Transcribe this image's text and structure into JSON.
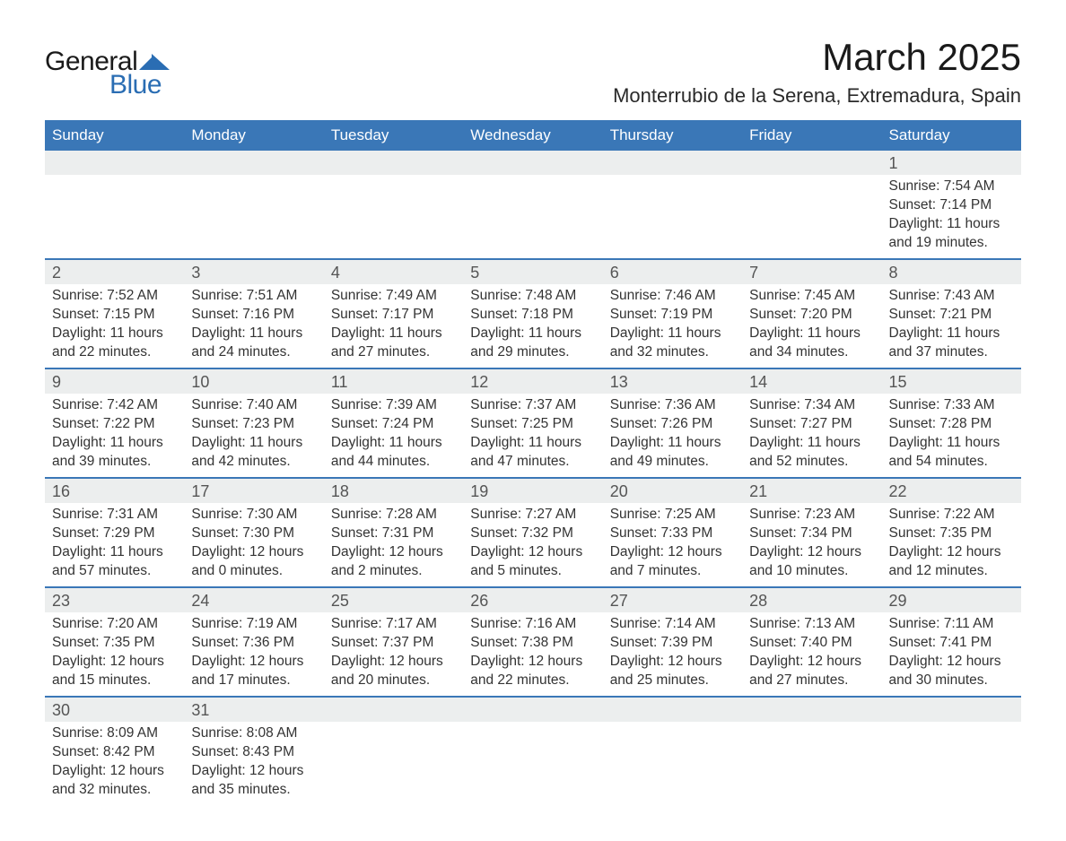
{
  "brand": {
    "name_a": "General",
    "name_b": "Blue"
  },
  "title": "March 2025",
  "location": "Monterrubio de la Serena, Extremadura, Spain",
  "colors": {
    "header_bg": "#3a77b7",
    "header_fg": "#ffffff",
    "row_stripe": "#eceeee",
    "border": "#3a77b7",
    "text": "#333333",
    "brand_blue": "#2a6db3"
  },
  "typography": {
    "title_fontsize": 42,
    "location_fontsize": 22,
    "th_fontsize": 17,
    "cell_fontsize": 15.5,
    "daynum_fontsize": 18
  },
  "days_of_week": [
    "Sunday",
    "Monday",
    "Tuesday",
    "Wednesday",
    "Thursday",
    "Friday",
    "Saturday"
  ],
  "weeks": [
    [
      null,
      null,
      null,
      null,
      null,
      null,
      {
        "n": "1",
        "sunrise": "Sunrise: 7:54 AM",
        "sunset": "Sunset: 7:14 PM",
        "daylight": "Daylight: 11 hours and 19 minutes."
      }
    ],
    [
      {
        "n": "2",
        "sunrise": "Sunrise: 7:52 AM",
        "sunset": "Sunset: 7:15 PM",
        "daylight": "Daylight: 11 hours and 22 minutes."
      },
      {
        "n": "3",
        "sunrise": "Sunrise: 7:51 AM",
        "sunset": "Sunset: 7:16 PM",
        "daylight": "Daylight: 11 hours and 24 minutes."
      },
      {
        "n": "4",
        "sunrise": "Sunrise: 7:49 AM",
        "sunset": "Sunset: 7:17 PM",
        "daylight": "Daylight: 11 hours and 27 minutes."
      },
      {
        "n": "5",
        "sunrise": "Sunrise: 7:48 AM",
        "sunset": "Sunset: 7:18 PM",
        "daylight": "Daylight: 11 hours and 29 minutes."
      },
      {
        "n": "6",
        "sunrise": "Sunrise: 7:46 AM",
        "sunset": "Sunset: 7:19 PM",
        "daylight": "Daylight: 11 hours and 32 minutes."
      },
      {
        "n": "7",
        "sunrise": "Sunrise: 7:45 AM",
        "sunset": "Sunset: 7:20 PM",
        "daylight": "Daylight: 11 hours and 34 minutes."
      },
      {
        "n": "8",
        "sunrise": "Sunrise: 7:43 AM",
        "sunset": "Sunset: 7:21 PM",
        "daylight": "Daylight: 11 hours and 37 minutes."
      }
    ],
    [
      {
        "n": "9",
        "sunrise": "Sunrise: 7:42 AM",
        "sunset": "Sunset: 7:22 PM",
        "daylight": "Daylight: 11 hours and 39 minutes."
      },
      {
        "n": "10",
        "sunrise": "Sunrise: 7:40 AM",
        "sunset": "Sunset: 7:23 PM",
        "daylight": "Daylight: 11 hours and 42 minutes."
      },
      {
        "n": "11",
        "sunrise": "Sunrise: 7:39 AM",
        "sunset": "Sunset: 7:24 PM",
        "daylight": "Daylight: 11 hours and 44 minutes."
      },
      {
        "n": "12",
        "sunrise": "Sunrise: 7:37 AM",
        "sunset": "Sunset: 7:25 PM",
        "daylight": "Daylight: 11 hours and 47 minutes."
      },
      {
        "n": "13",
        "sunrise": "Sunrise: 7:36 AM",
        "sunset": "Sunset: 7:26 PM",
        "daylight": "Daylight: 11 hours and 49 minutes."
      },
      {
        "n": "14",
        "sunrise": "Sunrise: 7:34 AM",
        "sunset": "Sunset: 7:27 PM",
        "daylight": "Daylight: 11 hours and 52 minutes."
      },
      {
        "n": "15",
        "sunrise": "Sunrise: 7:33 AM",
        "sunset": "Sunset: 7:28 PM",
        "daylight": "Daylight: 11 hours and 54 minutes."
      }
    ],
    [
      {
        "n": "16",
        "sunrise": "Sunrise: 7:31 AM",
        "sunset": "Sunset: 7:29 PM",
        "daylight": "Daylight: 11 hours and 57 minutes."
      },
      {
        "n": "17",
        "sunrise": "Sunrise: 7:30 AM",
        "sunset": "Sunset: 7:30 PM",
        "daylight": "Daylight: 12 hours and 0 minutes."
      },
      {
        "n": "18",
        "sunrise": "Sunrise: 7:28 AM",
        "sunset": "Sunset: 7:31 PM",
        "daylight": "Daylight: 12 hours and 2 minutes."
      },
      {
        "n": "19",
        "sunrise": "Sunrise: 7:27 AM",
        "sunset": "Sunset: 7:32 PM",
        "daylight": "Daylight: 12 hours and 5 minutes."
      },
      {
        "n": "20",
        "sunrise": "Sunrise: 7:25 AM",
        "sunset": "Sunset: 7:33 PM",
        "daylight": "Daylight: 12 hours and 7 minutes."
      },
      {
        "n": "21",
        "sunrise": "Sunrise: 7:23 AM",
        "sunset": "Sunset: 7:34 PM",
        "daylight": "Daylight: 12 hours and 10 minutes."
      },
      {
        "n": "22",
        "sunrise": "Sunrise: 7:22 AM",
        "sunset": "Sunset: 7:35 PM",
        "daylight": "Daylight: 12 hours and 12 minutes."
      }
    ],
    [
      {
        "n": "23",
        "sunrise": "Sunrise: 7:20 AM",
        "sunset": "Sunset: 7:35 PM",
        "daylight": "Daylight: 12 hours and 15 minutes."
      },
      {
        "n": "24",
        "sunrise": "Sunrise: 7:19 AM",
        "sunset": "Sunset: 7:36 PM",
        "daylight": "Daylight: 12 hours and 17 minutes."
      },
      {
        "n": "25",
        "sunrise": "Sunrise: 7:17 AM",
        "sunset": "Sunset: 7:37 PM",
        "daylight": "Daylight: 12 hours and 20 minutes."
      },
      {
        "n": "26",
        "sunrise": "Sunrise: 7:16 AM",
        "sunset": "Sunset: 7:38 PM",
        "daylight": "Daylight: 12 hours and 22 minutes."
      },
      {
        "n": "27",
        "sunrise": "Sunrise: 7:14 AM",
        "sunset": "Sunset: 7:39 PM",
        "daylight": "Daylight: 12 hours and 25 minutes."
      },
      {
        "n": "28",
        "sunrise": "Sunrise: 7:13 AM",
        "sunset": "Sunset: 7:40 PM",
        "daylight": "Daylight: 12 hours and 27 minutes."
      },
      {
        "n": "29",
        "sunrise": "Sunrise: 7:11 AM",
        "sunset": "Sunset: 7:41 PM",
        "daylight": "Daylight: 12 hours and 30 minutes."
      }
    ],
    [
      {
        "n": "30",
        "sunrise": "Sunrise: 8:09 AM",
        "sunset": "Sunset: 8:42 PM",
        "daylight": "Daylight: 12 hours and 32 minutes."
      },
      {
        "n": "31",
        "sunrise": "Sunrise: 8:08 AM",
        "sunset": "Sunset: 8:43 PM",
        "daylight": "Daylight: 12 hours and 35 minutes."
      },
      null,
      null,
      null,
      null,
      null
    ]
  ]
}
